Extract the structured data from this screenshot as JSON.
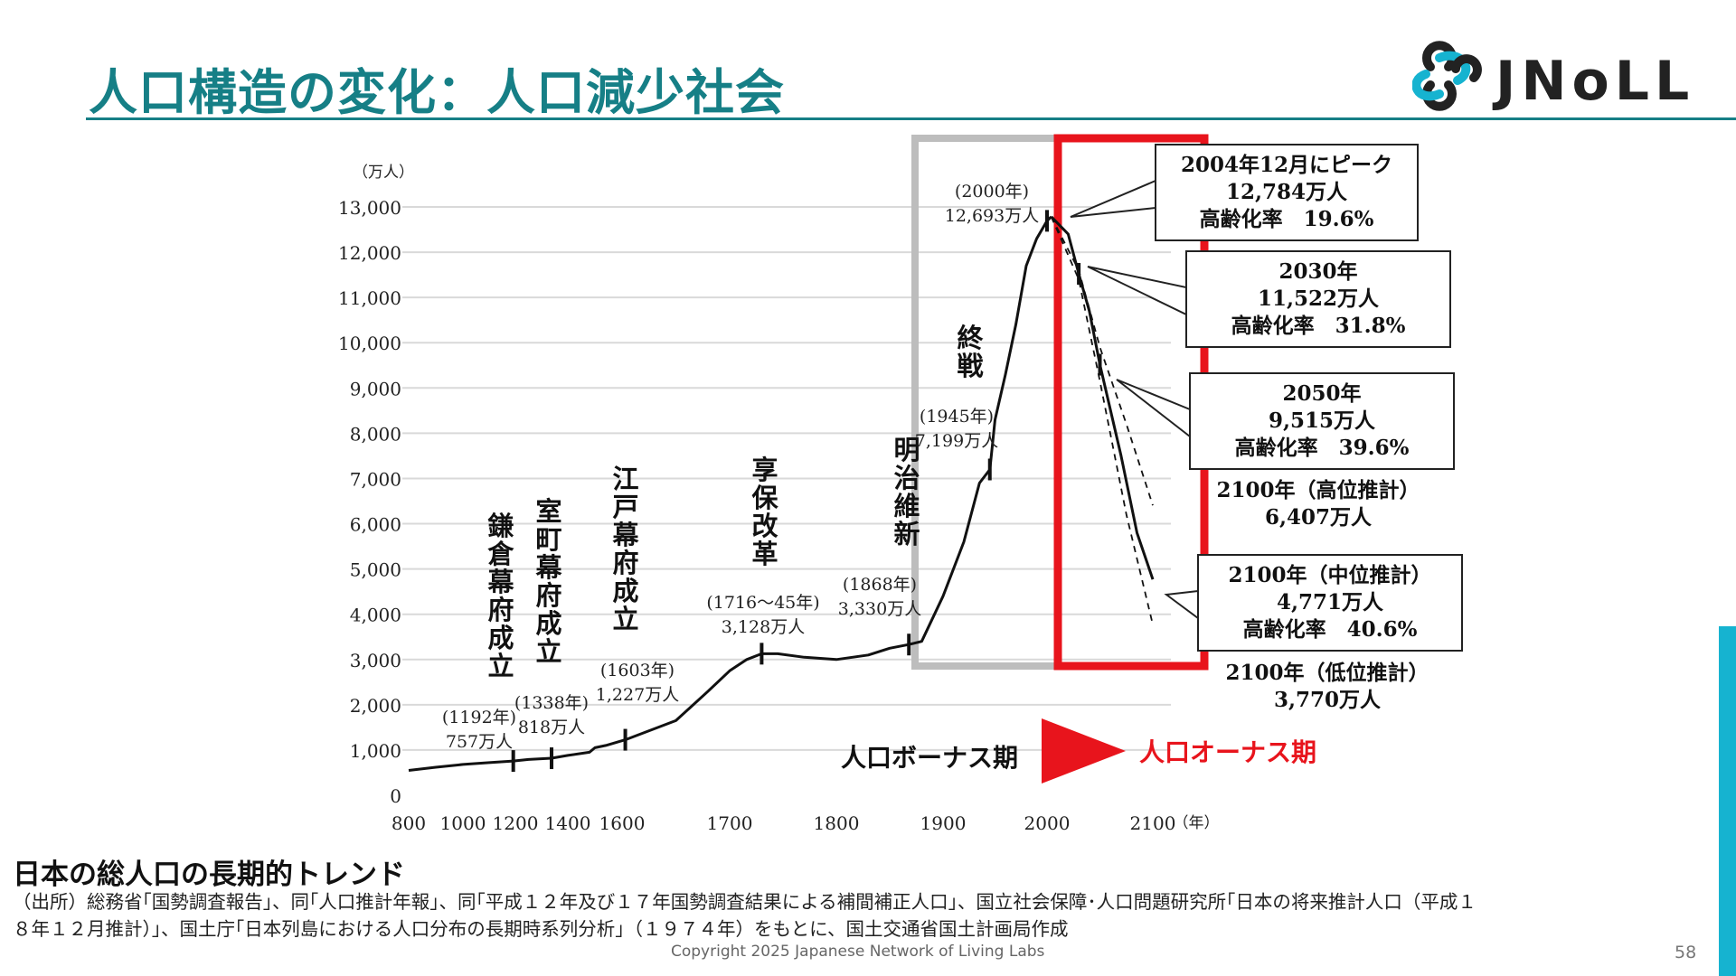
{
  "slide": {
    "title": "人口構造の変化：人口減少社会",
    "logo_text": "JNoLL",
    "caption_title": "日本の総人口の長期的トレンド",
    "source_line1": "（出所）総務省｢国勢調査報告｣、同｢人口推計年報｣、同｢平成１２年及び１７年国勢調査結果による補間補正人口｣、国立社会保障･人口問題研究所｢日本の将来推計人口（平成１",
    "source_line2": "８年１２月推計）｣、国土庁｢日本列島における人口分布の長期時系列分析｣（１９７４年）をもとに、国土交通省国土計画局作成",
    "copyright": "Copyright 2025  Japanese Network of Living Labs",
    "page_number": "58",
    "colors": {
      "title": "#167f86",
      "accent_bar": "#16b3d0",
      "highlight_red": "#e8141c",
      "highlight_gray": "#bdbdbd"
    }
  },
  "chart_data": {
    "type": "line",
    "ylabel": "（万人）",
    "xlabel": "（年）",
    "xlim": [
      800,
      2100
    ],
    "ylim": [
      0,
      13000
    ],
    "x_ticks": [
      "800",
      "1000",
      "1200",
      "1400",
      "1600",
      "1700",
      "1800",
      "1900",
      "2000",
      "2100"
    ],
    "y_ticks": [
      "0",
      "1,000",
      "2,000",
      "3,000",
      "4,000",
      "5,000",
      "6,000",
      "7,000",
      "8,000",
      "9,000",
      "10,000",
      "11,000",
      "12,000",
      "13,000"
    ],
    "grid": true,
    "series": [
      {
        "values": [
          [
            800,
            550
          ],
          [
            900,
            620
          ],
          [
            1000,
            680
          ],
          [
            1100,
            720
          ],
          [
            1192,
            757
          ],
          [
            1250,
            790
          ],
          [
            1338,
            818
          ],
          [
            1400,
            880
          ],
          [
            1480,
            950
          ],
          [
            1500,
            1050
          ],
          [
            1540,
            1100
          ],
          [
            1603,
            1227
          ],
          [
            1650,
            1650
          ],
          [
            1680,
            2300
          ],
          [
            1700,
            2750
          ],
          [
            1716,
            3000
          ],
          [
            1730,
            3128
          ],
          [
            1745,
            3128
          ],
          [
            1770,
            3050
          ],
          [
            1800,
            3000
          ],
          [
            1830,
            3100
          ],
          [
            1850,
            3250
          ],
          [
            1868,
            3330
          ],
          [
            1880,
            3400
          ],
          [
            1900,
            4400
          ],
          [
            1920,
            5600
          ],
          [
            1935,
            6900
          ],
          [
            1945,
            7199
          ],
          [
            1950,
            8300
          ],
          [
            1960,
            9300
          ],
          [
            1970,
            10400
          ],
          [
            1980,
            11700
          ],
          [
            1990,
            12300
          ],
          [
            2000,
            12693
          ],
          [
            2004,
            12784
          ]
        ]
      },
      {
        "values": [
          [
            2004,
            12784
          ],
          [
            2020,
            12400
          ],
          [
            2030,
            11522
          ],
          [
            2040,
            10700
          ],
          [
            2050,
            9515
          ],
          [
            2070,
            7500
          ],
          [
            2085,
            5800
          ],
          [
            2100,
            4771
          ]
        ]
      },
      {
        "values": [
          [
            2004,
            12784
          ],
          [
            2030,
            11600
          ],
          [
            2050,
            9900
          ],
          [
            2075,
            8200
          ],
          [
            2100,
            6407
          ]
        ]
      },
      {
        "values": [
          [
            2004,
            12784
          ],
          [
            2030,
            11400
          ],
          [
            2050,
            9150
          ],
          [
            2075,
            6200
          ],
          [
            2100,
            3770
          ]
        ]
      }
    ],
    "annotations": [
      {
        "label": "鎌倉幕府成立",
        "year": 1192,
        "value": 757,
        "sub1": "(1192年)",
        "sub2": "757万人"
      },
      {
        "label": "室町幕府成立",
        "year": 1338,
        "value": 818,
        "sub1": "(1338年)",
        "sub2": "818万人"
      },
      {
        "label": "江戸幕府成立",
        "year": 1603,
        "value": 1227,
        "sub1": "(1603年)",
        "sub2": "1,227万人"
      },
      {
        "label": "享保改革",
        "year": 1730,
        "value": 3128,
        "sub1": "(1716～45年)",
        "sub2": "3,128万人"
      },
      {
        "label": "明治維新",
        "year": 1868,
        "value": 3330,
        "sub1": "(1868年)",
        "sub2": "3,330万人"
      },
      {
        "label": "終戦",
        "year": 1945,
        "value": 7199,
        "sub1": "(1945年)",
        "sub2": "7,199万人"
      },
      {
        "label": "",
        "year": 2000,
        "value": 12693,
        "sub1": "(2000年)",
        "sub2": "12,693万人"
      }
    ],
    "callouts": [
      {
        "lines": [
          "2004年12月にピーク",
          "12,784万人",
          "高齢化率　19.6%"
        ]
      },
      {
        "lines": [
          "2030年",
          "11,522万人",
          "高齢化率　31.8%"
        ]
      },
      {
        "lines": [
          "2050年",
          "9,515万人",
          "高齢化率　39.6%"
        ]
      },
      {
        "lines": [
          "2100年（中位推計）",
          "4,771万人",
          "高齢化率　40.6%"
        ]
      }
    ],
    "projections": {
      "high": [
        "2100年（高位推計）",
        "6,407万人"
      ],
      "low": [
        "2100年（低位推計）",
        "3,770万人"
      ]
    },
    "periods": {
      "bonus": "人口ボーナス期",
      "onus": "人口オーナス期"
    }
  }
}
